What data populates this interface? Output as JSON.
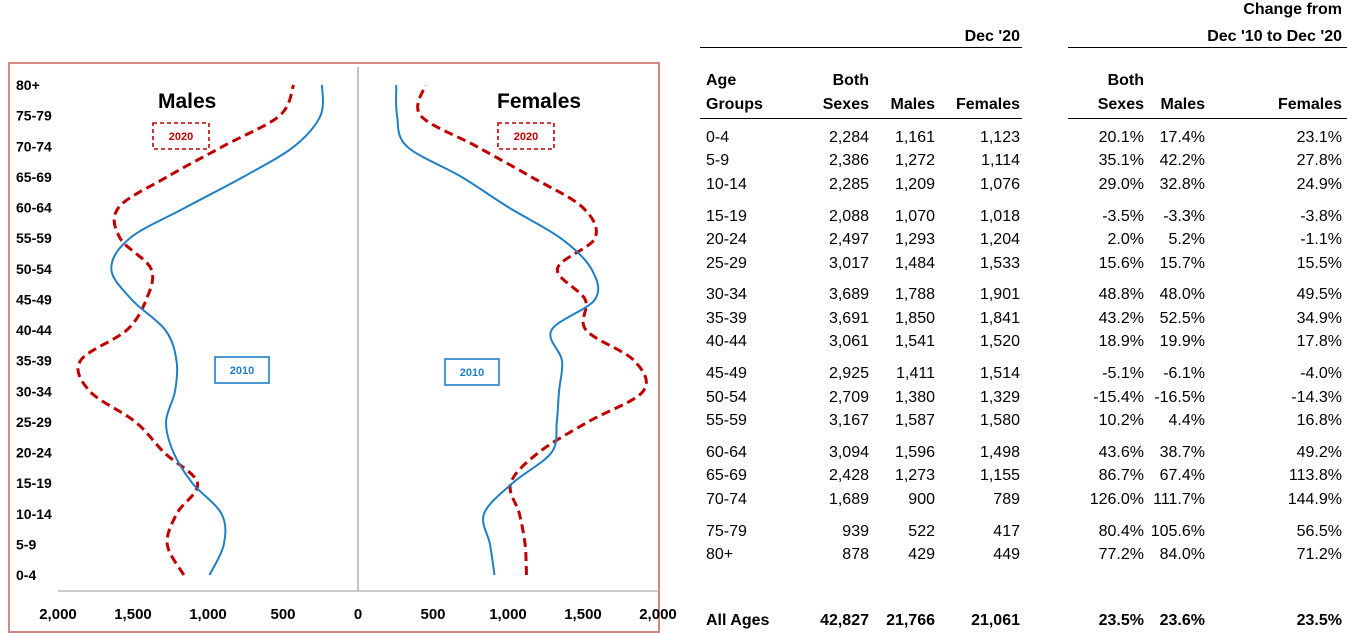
{
  "chart_data": {
    "type": "population-pyramid",
    "left_label": "Males",
    "right_label": "Females",
    "age_groups": [
      "0-4",
      "5-9",
      "10-14",
      "15-19",
      "20-24",
      "25-29",
      "30-34",
      "35-39",
      "40-44",
      "45-49",
      "50-54",
      "55-59",
      "60-64",
      "65-69",
      "70-74",
      "75-79",
      "80+"
    ],
    "x_ticks_left": [
      "2,000",
      "1,500",
      "1,000",
      "500"
    ],
    "x_ticks_center": "0",
    "x_ticks_right": [
      "500",
      "1,000",
      "1,500",
      "2,000"
    ],
    "xlim": [
      0,
      2000
    ],
    "series": [
      {
        "name": "2020",
        "style": "dashed",
        "color": "#c00000",
        "males": [
          1161,
          1272,
          1209,
          1070,
          1293,
          1484,
          1788,
          1850,
          1541,
          1411,
          1380,
          1587,
          1596,
          1273,
          900,
          522,
          429
        ],
        "females": [
          1123,
          1114,
          1076,
          1018,
          1204,
          1533,
          1901,
          1841,
          1520,
          1514,
          1329,
          1580,
          1498,
          1155,
          789,
          417,
          449
        ]
      },
      {
        "name": "2010",
        "style": "solid",
        "color": "#1f7fc4",
        "males": [
          990,
          895,
          910,
          1105,
          1230,
          1280,
          1220,
          1210,
          1285,
          1510,
          1645,
          1520,
          1150,
          765,
          425,
          250,
          240
        ],
        "females": [
          910,
          880,
          840,
          1030,
          1290,
          1325,
          1340,
          1360,
          1290,
          1580,
          1555,
          1350,
          1005,
          690,
          325,
          260,
          255
        ]
      }
    ],
    "annotations": {
      "males_box": "2020",
      "females_box": "2020",
      "males_box_2010": "2010",
      "females_box_2010": "2010"
    }
  },
  "table": {
    "group_dec20": "Dec '20",
    "group_change_l1": "Change from",
    "group_change_l2": "Dec '10 to Dec '20",
    "col_age_l1": "Age",
    "col_age_l2": "Groups",
    "col_both_l1": "Both",
    "col_both_l2": "Sexes",
    "col_males": "Males",
    "col_females": "Females",
    "col_cboth_l1": "Both",
    "col_cboth_l2": "Sexes",
    "col_cmales": "Males",
    "col_cfemales": "Females",
    "rows": [
      [
        "0-4",
        "2,284",
        "1,161",
        "1,123",
        "20.1%",
        "17.4%",
        "23.1%"
      ],
      [
        "5-9",
        "2,386",
        "1,272",
        "1,114",
        "35.1%",
        "42.2%",
        "27.8%"
      ],
      [
        "10-14",
        "2,285",
        "1,209",
        "1,076",
        "29.0%",
        "32.8%",
        "24.9%"
      ],
      [
        "15-19",
        "2,088",
        "1,070",
        "1,018",
        "-3.5%",
        "-3.3%",
        "-3.8%"
      ],
      [
        "20-24",
        "2,497",
        "1,293",
        "1,204",
        "2.0%",
        "5.2%",
        "-1.1%"
      ],
      [
        "25-29",
        "3,017",
        "1,484",
        "1,533",
        "15.6%",
        "15.7%",
        "15.5%"
      ],
      [
        "30-34",
        "3,689",
        "1,788",
        "1,901",
        "48.8%",
        "48.0%",
        "49.5%"
      ],
      [
        "35-39",
        "3,691",
        "1,850",
        "1,841",
        "43.2%",
        "52.5%",
        "34.9%"
      ],
      [
        "40-44",
        "3,061",
        "1,541",
        "1,520",
        "18.9%",
        "19.9%",
        "17.8%"
      ],
      [
        "45-49",
        "2,925",
        "1,411",
        "1,514",
        "-5.1%",
        "-6.1%",
        "-4.0%"
      ],
      [
        "50-54",
        "2,709",
        "1,380",
        "1,329",
        "-15.4%",
        "-16.5%",
        "-14.3%"
      ],
      [
        "55-59",
        "3,167",
        "1,587",
        "1,580",
        "10.2%",
        "4.4%",
        "16.8%"
      ],
      [
        "60-64",
        "3,094",
        "1,596",
        "1,498",
        "43.6%",
        "38.7%",
        "49.2%"
      ],
      [
        "65-69",
        "2,428",
        "1,273",
        "1,155",
        "86.7%",
        "67.4%",
        "113.8%"
      ],
      [
        "70-74",
        "1,689",
        "900",
        "789",
        "126.0%",
        "111.7%",
        "144.9%"
      ],
      [
        "75-79",
        "939",
        "522",
        "417",
        "80.4%",
        "105.6%",
        "56.5%"
      ],
      [
        "80+",
        "878",
        "429",
        "449",
        "77.2%",
        "84.0%",
        "71.2%"
      ]
    ],
    "total": [
      "All Ages",
      "42,827",
      "21,766",
      "21,061",
      "23.5%",
      "23.6%",
      "23.5%"
    ]
  }
}
